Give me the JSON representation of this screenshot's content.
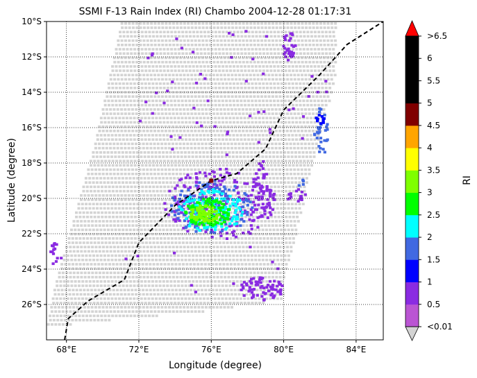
{
  "chart_data": {
    "type": "swath-map",
    "title": "SSMI F-13 Rain Index (RI) Chambo 2004-12-28 01:17:31",
    "xlabel": "Longitude (degree)",
    "ylabel": "Latitude (degree)",
    "x_range": [
      66.9,
      85.5
    ],
    "y_range": [
      -28.0,
      -10.0
    ],
    "x_ticks": [
      {
        "value": 68,
        "label": "68°E"
      },
      {
        "value": 72,
        "label": "72°E"
      },
      {
        "value": 76,
        "label": "76°E"
      },
      {
        "value": 80,
        "label": "80°E"
      },
      {
        "value": 84,
        "label": "84°E"
      }
    ],
    "y_ticks": [
      {
        "value": -10,
        "label": "10°S"
      },
      {
        "value": -12,
        "label": "12°S"
      },
      {
        "value": -14,
        "label": "14°S"
      },
      {
        "value": -16,
        "label": "16°S"
      },
      {
        "value": -18,
        "label": "18°S"
      },
      {
        "value": -20,
        "label": "20°S"
      },
      {
        "value": -22,
        "label": "22°S"
      },
      {
        "value": -24,
        "label": "24°S"
      },
      {
        "value": -26,
        "label": "26°S"
      }
    ],
    "grid": true,
    "swath": {
      "left_edge": [
        [
          66.9,
          -27.2
        ],
        [
          67.3,
          -25.0
        ],
        [
          69.5,
          -17.0
        ],
        [
          71.0,
          -10.0
        ]
      ],
      "right_edge": [
        [
          82.8,
          -10.0
        ],
        [
          82.8,
          -13.0
        ],
        [
          80.0,
          -24.5
        ],
        [
          79.9,
          -25.7
        ]
      ],
      "bottom_arc": [
        [
          66.9,
          -27.2
        ],
        [
          70.5,
          -26.8
        ],
        [
          75.0,
          -26.4
        ],
        [
          79.9,
          -25.7
        ]
      ],
      "no_data_color": "#d3d3d3"
    },
    "storm_track": {
      "style": "dashed",
      "color": "#000000",
      "points": [
        [
          67.9,
          -28.0
        ],
        [
          68.1,
          -26.8
        ],
        [
          69.2,
          -25.8
        ],
        [
          71.2,
          -24.6
        ],
        [
          72.0,
          -22.5
        ],
        [
          74.0,
          -20.4
        ],
        [
          76.0,
          -19.0
        ],
        [
          77.4,
          -18.6
        ],
        [
          79.0,
          -17.2
        ],
        [
          80.0,
          -15.0
        ],
        [
          82.0,
          -13.0
        ],
        [
          83.5,
          -11.3
        ],
        [
          85.5,
          -10.0
        ]
      ]
    },
    "current_position": {
      "lon": 76.0,
      "lat": -19.0,
      "color": "#7b0000"
    },
    "rain_regions": [
      {
        "center": [
          76.5,
          -20.3
        ],
        "radius": [
          3.1,
          2.0
        ],
        "level": 1,
        "count": 230
      },
      {
        "center": [
          76.0,
          -20.5
        ],
        "radius": [
          2.3,
          1.5
        ],
        "level": 3,
        "count": 140
      },
      {
        "center": [
          76.0,
          -20.7
        ],
        "radius": [
          1.8,
          1.2
        ],
        "level": 4,
        "count": 130
      },
      {
        "center": [
          75.8,
          -20.8
        ],
        "radius": [
          1.3,
          0.8
        ],
        "level": 5,
        "count": 110
      },
      {
        "center": [
          75.6,
          -20.9
        ],
        "radius": [
          0.8,
          0.5
        ],
        "level": 6,
        "count": 70
      },
      {
        "center": [
          78.8,
          -19.5
        ],
        "radius": [
          0.5,
          1.6
        ],
        "level": 1,
        "count": 45
      },
      {
        "center": [
          82.1,
          -16.2
        ],
        "radius": [
          0.4,
          1.4
        ],
        "level": 3,
        "count": 30
      },
      {
        "center": [
          82.0,
          -15.5
        ],
        "radius": [
          0.3,
          0.5
        ],
        "level": 2,
        "count": 10
      },
      {
        "center": [
          78.8,
          -25.1
        ],
        "radius": [
          1.2,
          0.7
        ],
        "level": 1,
        "count": 70
      },
      {
        "center": [
          80.3,
          -11.4
        ],
        "radius": [
          0.35,
          0.8
        ],
        "level": 1,
        "count": 30
      },
      {
        "center": [
          80.7,
          -19.8
        ],
        "radius": [
          0.6,
          0.4
        ],
        "level": 1,
        "count": 16
      },
      {
        "center": [
          67.4,
          -23.3
        ],
        "radius": [
          0.35,
          0.8
        ],
        "level": 1,
        "count": 14
      },
      {
        "center": [
          80.9,
          -19.1
        ],
        "radius": [
          0.25,
          0.2
        ],
        "level": 3,
        "count": 4
      }
    ],
    "rain_scatter": [
      {
        "center": [
          77.0,
          -14.0
        ],
        "radius": [
          5.5,
          4.0
        ],
        "level": 1,
        "count": 60
      },
      {
        "center": [
          76.0,
          -24.0
        ],
        "radius": [
          5.0,
          2.0
        ],
        "level": 1,
        "count": 14
      }
    ],
    "colorbar": {
      "label": "RI",
      "bounds": [
        "<0.01",
        "0.5",
        "1",
        "1.5",
        "2",
        "2.5",
        "3",
        "3.5",
        "4",
        "4.5",
        "5",
        "5.5",
        "6",
        ">6.5"
      ],
      "colors": [
        "#ba55d3",
        "#8a2be2",
        "#0000ff",
        "#4169e1",
        "#00ffff",
        "#00ff00",
        "#7fff00",
        "#ffff00",
        "#ffa500",
        "#800000",
        "#000000",
        "#000000",
        "#000000"
      ],
      "under_color": "#d3d3d3",
      "over_color": "#ff0000"
    }
  }
}
